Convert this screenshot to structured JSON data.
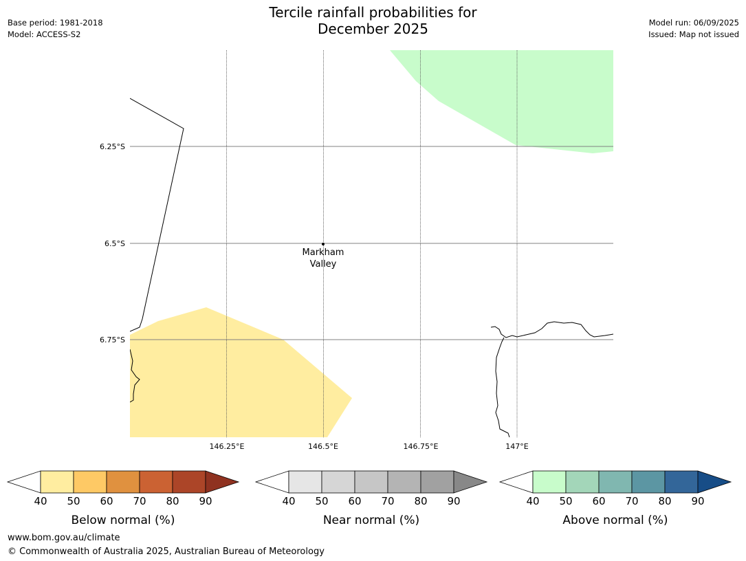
{
  "header": {
    "title_line1": "Tercile rainfall probabilities for",
    "title_line2": "December 2025",
    "base_period": "Base period: 1981-2018",
    "model": "Model: ACCESS-S2",
    "model_run": "Model run: 06/09/2025",
    "issued": "Issued: Map not issued"
  },
  "map": {
    "lat_labels": [
      "6.25°S",
      "6.5°S",
      "6.75°S"
    ],
    "lon_labels": [
      "146.25°E",
      "146.5°E",
      "146.75°E",
      "147°E"
    ],
    "place": {
      "name_line1": "Markham",
      "name_line2": "Valley"
    },
    "colors": {
      "below_40": "#ffeda0",
      "above_40": "#c8fccb",
      "coastline": "#000000",
      "gridline": "#808080"
    }
  },
  "legends": [
    {
      "title": "Below normal (%)",
      "ticks": [
        "40",
        "50",
        "60",
        "70",
        "80",
        "90"
      ],
      "colors": [
        "#ffeda0",
        "#fec965",
        "#e0913f",
        "#cb6233",
        "#ac4528",
        "#8f3220"
      ]
    },
    {
      "title": "Near normal (%)",
      "ticks": [
        "40",
        "50",
        "60",
        "70",
        "80",
        "90"
      ],
      "colors": [
        "#e6e6e6",
        "#d6d6d6",
        "#c6c6c6",
        "#b4b4b4",
        "#a1a1a1",
        "#888888"
      ]
    },
    {
      "title": "Above normal (%)",
      "ticks": [
        "40",
        "50",
        "60",
        "70",
        "80",
        "90"
      ],
      "colors": [
        "#c8fccb",
        "#a3d6b9",
        "#80b7b0",
        "#5c96a3",
        "#336699",
        "#174d87"
      ]
    }
  ],
  "footer": {
    "url": "www.bom.gov.au/climate",
    "copyright": "© Commonwealth of Australia 2025, Australian Bureau of Meteorology"
  }
}
